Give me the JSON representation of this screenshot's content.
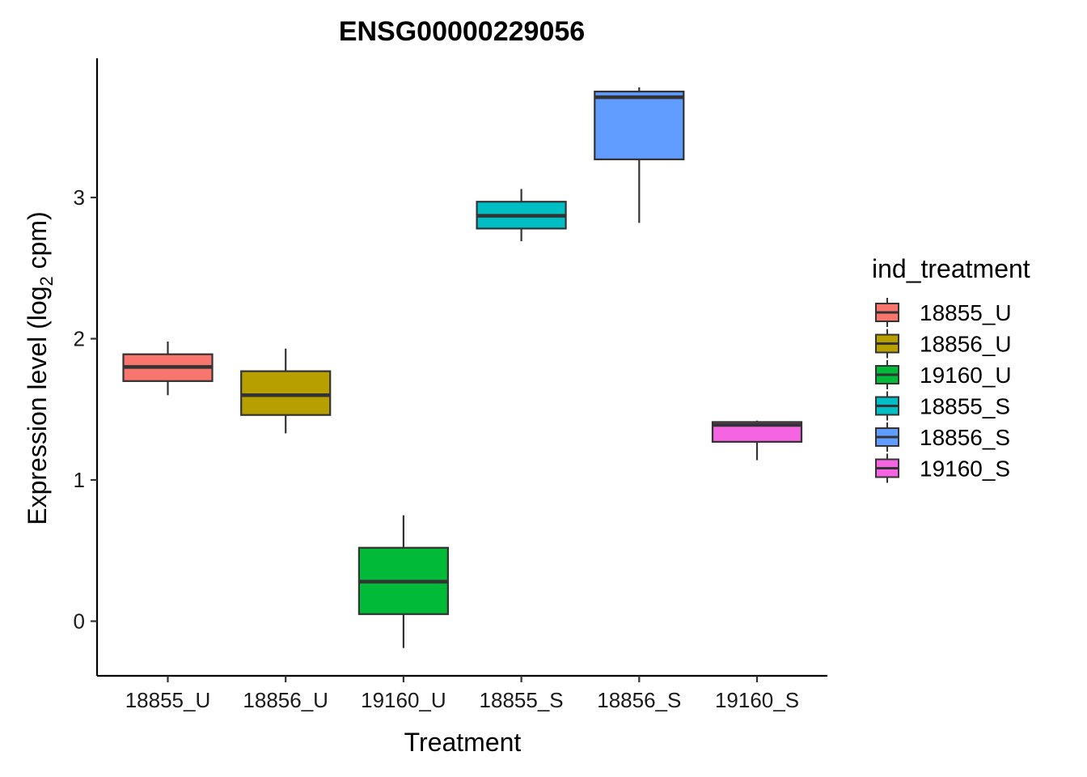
{
  "chart_data": {
    "type": "boxplot",
    "title": "ENSG00000229056",
    "xlabel": "Treatment",
    "ylabel": "Expression level (log",
    "ylabel_sub": "2",
    "ylabel_suffix": " cpm)",
    "ylim": [
      -0.38,
      4.0
    ],
    "yticks": [
      0,
      1,
      2,
      3
    ],
    "categories": [
      "18855_U",
      "18856_U",
      "19160_U",
      "18855_S",
      "18856_S",
      "19160_S"
    ],
    "series": [
      {
        "name": "18855_U",
        "color": "#F8766D",
        "whisker_low": 1.6,
        "q1": 1.7,
        "median": 1.8,
        "q3": 1.89,
        "whisker_high": 1.98
      },
      {
        "name": "18856_U",
        "color": "#B79F00",
        "whisker_low": 1.33,
        "q1": 1.46,
        "median": 1.6,
        "q3": 1.77,
        "whisker_high": 1.93
      },
      {
        "name": "19160_U",
        "color": "#00BA38",
        "whisker_low": -0.19,
        "q1": 0.05,
        "median": 0.28,
        "q3": 0.52,
        "whisker_high": 0.75
      },
      {
        "name": "18855_S",
        "color": "#00BFC4",
        "whisker_low": 2.69,
        "q1": 2.78,
        "median": 2.87,
        "q3": 2.97,
        "whisker_high": 3.06
      },
      {
        "name": "18856_S",
        "color": "#619CFF",
        "whisker_low": 2.82,
        "q1": 3.27,
        "median": 3.71,
        "q3": 3.75,
        "whisker_high": 3.78
      },
      {
        "name": "19160_S",
        "color": "#F564E3",
        "whisker_low": 1.14,
        "q1": 1.27,
        "median": 1.39,
        "q3": 1.41,
        "whisker_high": 1.42
      }
    ],
    "legend": {
      "title": "ind_treatment",
      "position": "right",
      "entries": [
        "18855_U",
        "18856_U",
        "19160_U",
        "18855_S",
        "18856_S",
        "19160_S"
      ]
    },
    "grid": false
  }
}
